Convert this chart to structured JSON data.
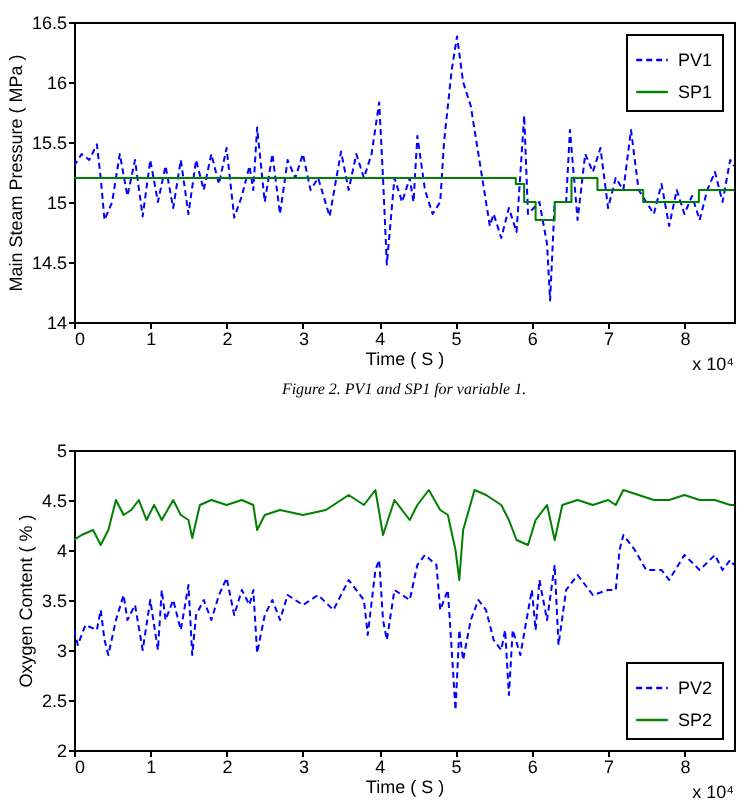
{
  "chart_data": [
    {
      "type": "line",
      "xlabel": "Time ( S )",
      "ylabel": "Main Steam Pressure ( MPa )",
      "annotations": [
        "x 10⁴",
        "Figure 2. PV1 and SP1 for variable 1."
      ],
      "xlim": [
        0,
        8.65
      ],
      "xticks": [
        0,
        1,
        2,
        3,
        4,
        5,
        6,
        7,
        8
      ],
      "ylim": [
        14,
        16.5
      ],
      "yticks": [
        14,
        14.5,
        15,
        15.5,
        16,
        16.5
      ],
      "legend": "top right",
      "series": [
        {
          "name": "PV1",
          "type": "line",
          "line_style": "dashed",
          "color": "#0000ff",
          "x": [
            0,
            0.1,
            0.2,
            0.3,
            0.35,
            0.4,
            0.5,
            0.6,
            0.7,
            0.8,
            0.9,
            1.0,
            1.1,
            1.2,
            1.3,
            1.4,
            1.5,
            1.6,
            1.7,
            1.8,
            1.9,
            2.0,
            2.1,
            2.2,
            2.3,
            2.35,
            2.4,
            2.5,
            2.6,
            2.7,
            2.8,
            2.9,
            3.0,
            3.1,
            3.2,
            3.35,
            3.5,
            3.6,
            3.7,
            3.8,
            3.9,
            4.0,
            4.05,
            4.1,
            4.2,
            4.3,
            4.4,
            4.45,
            4.5,
            4.6,
            4.7,
            4.8,
            4.85,
            4.95,
            5.02,
            5.1,
            5.2,
            5.3,
            5.35,
            5.45,
            5.5,
            5.6,
            5.7,
            5.8,
            5.9,
            5.95,
            6.1,
            6.2,
            6.24,
            6.3,
            6.45,
            6.5,
            6.6,
            6.7,
            6.8,
            6.9,
            7.0,
            7.1,
            7.2,
            7.3,
            7.4,
            7.5,
            7.6,
            7.7,
            7.8,
            7.9,
            8.0,
            8.1,
            8.2,
            8.3,
            8.4,
            8.5,
            8.6,
            8.65
          ],
          "values": [
            15.3,
            15.4,
            15.35,
            15.48,
            15.2,
            14.85,
            15.0,
            15.4,
            15.05,
            15.35,
            14.88,
            15.35,
            15.0,
            15.3,
            14.95,
            15.35,
            14.9,
            15.35,
            15.1,
            15.4,
            15.15,
            15.45,
            14.87,
            15.05,
            15.3,
            15.1,
            15.62,
            15.0,
            15.4,
            14.9,
            15.35,
            15.2,
            15.4,
            15.1,
            15.2,
            14.88,
            15.42,
            15.1,
            15.4,
            15.2,
            15.4,
            15.83,
            15.2,
            14.48,
            15.2,
            15.0,
            15.2,
            15.0,
            15.55,
            15.1,
            14.9,
            15.0,
            15.5,
            16.1,
            16.38,
            16.0,
            15.8,
            15.4,
            15.2,
            14.8,
            14.9,
            14.7,
            14.95,
            14.75,
            15.72,
            14.9,
            15.0,
            14.65,
            14.18,
            15.0,
            15.0,
            15.6,
            14.85,
            15.4,
            15.25,
            15.45,
            14.95,
            15.2,
            15.1,
            15.6,
            15.1,
            15.0,
            14.9,
            15.15,
            14.8,
            15.1,
            14.9,
            15.05,
            14.85,
            15.1,
            15.25,
            15.0,
            15.35,
            15.3
          ]
        },
        {
          "name": "SP1",
          "type": "step",
          "line_style": "solid",
          "color": "#008000",
          "x": [
            0,
            5.79,
            5.9,
            6.05,
            6.3,
            6.52,
            6.86,
            7.46,
            8.19,
            8.65
          ],
          "values": [
            15.2,
            15.15,
            15.0,
            14.85,
            15.0,
            15.2,
            15.1,
            15.0,
            15.1,
            15.1
          ]
        }
      ]
    },
    {
      "type": "line",
      "xlabel": "Time ( S )",
      "ylabel": "Oxygen Content ( % )",
      "annotations": [
        "x 10⁴"
      ],
      "xlim": [
        0,
        8.65
      ],
      "xticks": [
        0,
        1,
        2,
        3,
        4,
        5,
        6,
        7,
        8
      ],
      "ylim": [
        2,
        5
      ],
      "yticks": [
        2,
        2.5,
        3,
        3.5,
        4,
        4.5,
        5
      ],
      "legend": "bottom right",
      "series": [
        {
          "name": "PV2",
          "type": "line",
          "line_style": "dashed",
          "color": "#0000ff",
          "x": [
            0,
            0.05,
            0.15,
            0.3,
            0.35,
            0.4,
            0.45,
            0.55,
            0.65,
            0.7,
            0.8,
            0.9,
            1.0,
            1.1,
            1.15,
            1.2,
            1.3,
            1.4,
            1.5,
            1.55,
            1.6,
            1.7,
            1.8,
            1.9,
            2.0,
            2.1,
            2.2,
            2.3,
            2.35,
            2.4,
            2.5,
            2.6,
            2.7,
            2.8,
            3.0,
            3.2,
            3.4,
            3.6,
            3.8,
            3.85,
            3.95,
            4.0,
            4.05,
            4.1,
            4.2,
            4.4,
            4.5,
            4.6,
            4.75,
            4.8,
            4.9,
            5.0,
            5.05,
            5.1,
            5.2,
            5.3,
            5.4,
            5.5,
            5.6,
            5.65,
            5.7,
            5.75,
            5.85,
            6.0,
            6.05,
            6.1,
            6.2,
            6.3,
            6.35,
            6.45,
            6.6,
            6.8,
            7.0,
            7.1,
            7.15,
            7.2,
            7.35,
            7.5,
            7.7,
            7.8,
            8.0,
            8.2,
            8.4,
            8.5,
            8.6,
            8.65
          ],
          "values": [
            3.2,
            3.05,
            3.25,
            3.2,
            3.4,
            3.1,
            2.95,
            3.3,
            3.55,
            3.3,
            3.45,
            3.0,
            3.5,
            3.0,
            3.6,
            3.3,
            3.5,
            3.2,
            3.65,
            2.95,
            3.35,
            3.5,
            3.3,
            3.55,
            3.72,
            3.35,
            3.6,
            3.45,
            3.6,
            2.97,
            3.35,
            3.5,
            3.3,
            3.55,
            3.45,
            3.55,
            3.4,
            3.7,
            3.5,
            3.15,
            3.8,
            3.9,
            3.3,
            3.1,
            3.6,
            3.5,
            3.85,
            3.95,
            3.85,
            3.4,
            3.6,
            2.4,
            3.2,
            2.9,
            3.3,
            3.5,
            3.4,
            3.1,
            3.0,
            3.2,
            2.55,
            3.2,
            2.95,
            3.6,
            3.2,
            3.7,
            3.3,
            3.85,
            3.05,
            3.6,
            3.75,
            3.55,
            3.6,
            3.6,
            4.0,
            4.15,
            4.0,
            3.8,
            3.8,
            3.7,
            3.95,
            3.8,
            3.95,
            3.8,
            3.9,
            3.85
          ]
        },
        {
          "name": "SP2",
          "type": "line",
          "line_style": "solid",
          "color": "#008000",
          "x": [
            0,
            0.1,
            0.25,
            0.35,
            0.45,
            0.55,
            0.65,
            0.75,
            0.85,
            0.95,
            1.05,
            1.15,
            1.3,
            1.4,
            1.5,
            1.55,
            1.65,
            1.8,
            2.0,
            2.2,
            2.35,
            2.4,
            2.5,
            2.7,
            3.0,
            3.3,
            3.5,
            3.6,
            3.8,
            3.95,
            4.05,
            4.2,
            4.4,
            4.5,
            4.65,
            4.8,
            4.9,
            5.0,
            5.05,
            5.1,
            5.25,
            5.4,
            5.6,
            5.7,
            5.8,
            5.95,
            6.05,
            6.2,
            6.3,
            6.4,
            6.6,
            6.8,
            7.0,
            7.1,
            7.2,
            7.4,
            7.6,
            7.8,
            8.0,
            8.2,
            8.4,
            8.6,
            8.65
          ],
          "values": [
            4.1,
            4.15,
            4.2,
            4.05,
            4.2,
            4.5,
            4.35,
            4.4,
            4.5,
            4.3,
            4.45,
            4.3,
            4.5,
            4.35,
            4.3,
            4.12,
            4.45,
            4.5,
            4.45,
            4.5,
            4.45,
            4.2,
            4.35,
            4.4,
            4.35,
            4.4,
            4.5,
            4.55,
            4.45,
            4.6,
            4.15,
            4.5,
            4.3,
            4.45,
            4.6,
            4.4,
            4.35,
            4.0,
            3.7,
            4.2,
            4.6,
            4.55,
            4.45,
            4.3,
            4.1,
            4.05,
            4.3,
            4.45,
            4.1,
            4.45,
            4.5,
            4.45,
            4.5,
            4.45,
            4.6,
            4.55,
            4.5,
            4.5,
            4.55,
            4.5,
            4.5,
            4.45,
            4.45
          ]
        }
      ]
    }
  ]
}
